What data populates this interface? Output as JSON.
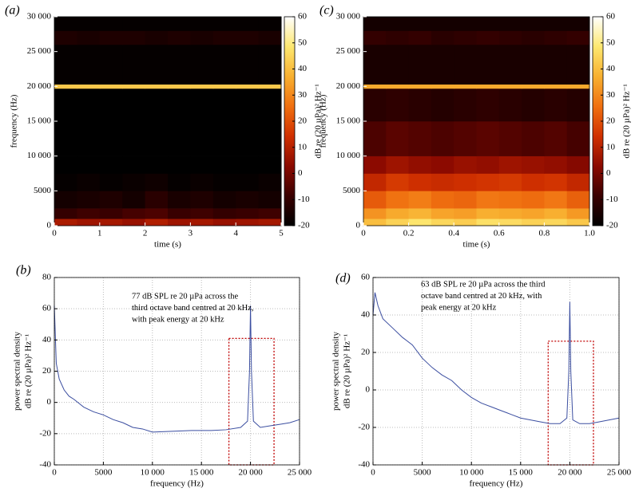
{
  "chart_data": [
    {
      "type": "heatmap",
      "panel_label": "(a)",
      "xlabel": "time (s)",
      "ylabel": "frequency (Hz)",
      "xlim": [
        0,
        5
      ],
      "xticks": [
        0,
        1,
        2,
        3,
        4,
        5
      ],
      "ylim": [
        0,
        30000
      ],
      "yticks": [
        0,
        5000,
        {
          "value": 10000,
          "label": "10 000"
        },
        {
          "value": 15000,
          "label": "15 000"
        },
        {
          "value": 20000,
          "label": "20 000"
        },
        {
          "value": 25000,
          "label": "25 000"
        },
        {
          "value": 30000,
          "label": "30 000"
        }
      ],
      "xbins": [
        0,
        0.5,
        1,
        1.5,
        2,
        2.5,
        3,
        3.5,
        4,
        4.5,
        5
      ],
      "ybins": [
        0,
        1000,
        2500,
        5000,
        7500,
        10000,
        15000,
        19700,
        20300,
        26000,
        28000,
        30000
      ],
      "z": [
        [
          8,
          6,
          7,
          5,
          9,
          6,
          7,
          5,
          6,
          7
        ],
        [
          -10,
          -8,
          -9,
          -7,
          -6,
          -9,
          -8,
          -10,
          -9,
          -8
        ],
        [
          -16,
          -15,
          -14,
          -16,
          -12,
          -15,
          -14,
          -16,
          -15,
          -16
        ],
        [
          -19,
          -18,
          -19,
          -18,
          -17,
          -19,
          -18,
          -19,
          -19,
          -18
        ],
        [
          -20,
          -20,
          -20,
          -20,
          -20,
          -20,
          -20,
          -20,
          -20,
          -20
        ],
        [
          -20,
          -20,
          -20,
          -20,
          -20,
          -20,
          -20,
          -20,
          -20,
          -20
        ],
        [
          -20,
          -20,
          -20,
          -20,
          -20,
          -20,
          -20,
          -20,
          -20,
          -20
        ],
        [
          42,
          42,
          42,
          42,
          42,
          42,
          42,
          42,
          42,
          42
        ],
        [
          -19,
          -19,
          -19,
          -19,
          -19,
          -19,
          -19,
          -19,
          -19,
          -19
        ],
        [
          -14,
          -15,
          -14,
          -14,
          -15,
          -14,
          -15,
          -14,
          -14,
          -15
        ],
        [
          -19,
          -19,
          -19,
          -19,
          -19,
          -19,
          -19,
          -19,
          -19,
          -19
        ]
      ],
      "clim": [
        -20,
        60
      ],
      "cticks": [
        -20,
        -10,
        0,
        10,
        20,
        30,
        40,
        50,
        60
      ],
      "clabel": "dB re (20 µPa)² Hz⁻¹",
      "colormap": [
        "#000000",
        "#3a0000",
        "#8b0a00",
        "#d03000",
        "#f07010",
        "#f8b030",
        "#fde870",
        "#ffffff"
      ]
    },
    {
      "type": "line",
      "panel_label": "(b)",
      "xlabel": "frequency (Hz)",
      "ylabel": [
        "power spectral density",
        "dB re (20 µPa)² Hz⁻¹"
      ],
      "xlim": [
        0,
        25000
      ],
      "xticks": [
        0,
        5000,
        {
          "value": 10000,
          "label": "10 000"
        },
        {
          "value": 15000,
          "label": "15 000"
        },
        {
          "value": 20000,
          "label": "20 000"
        },
        {
          "value": 25000,
          "label": "25 000"
        }
      ],
      "ylim": [
        -40,
        80
      ],
      "yticks": [
        -40,
        -20,
        0,
        20,
        40,
        60,
        80
      ],
      "grid": true,
      "color": "#3b4ea0",
      "x": [
        0,
        200,
        500,
        1000,
        1500,
        2000,
        3000,
        4000,
        5000,
        6000,
        7000,
        8000,
        9000,
        10000,
        12000,
        14000,
        16000,
        17500,
        19000,
        19700,
        19900,
        20000,
        20100,
        20300,
        21000,
        22000,
        23000,
        24000,
        25000
      ],
      "values": [
        62,
        25,
        15,
        8,
        4,
        2,
        -3,
        -6,
        -8,
        -11,
        -13,
        -16,
        -17,
        -19,
        -18.5,
        -18,
        -18,
        -17.5,
        -16,
        -12,
        20,
        62,
        20,
        -12,
        -16,
        -15,
        -14,
        -13,
        -11
      ],
      "annotation": [
        "77 dB SPL re 20 µPa across the",
        "third octave band centred at 20 kHz,",
        "with peak energy at 20 kHz"
      ],
      "highlight": {
        "x": [
          17800,
          22400
        ],
        "y": [
          -40,
          41
        ],
        "color": "#c00000"
      }
    },
    {
      "type": "heatmap",
      "panel_label": "(c)",
      "xlabel": "time (s)",
      "ylabel": "frequency (Hz)",
      "xlim": [
        0,
        1
      ],
      "xticks": [
        0,
        0.2,
        0.4,
        0.6,
        0.8,
        {
          "value": 1,
          "label": "1.0"
        }
      ],
      "ylim": [
        0,
        30000
      ],
      "yticks": [
        0,
        5000,
        {
          "value": 10000,
          "label": "10 000"
        },
        {
          "value": 15000,
          "label": "15 000"
        },
        {
          "value": 20000,
          "label": "20 000"
        },
        {
          "value": 25000,
          "label": "25 000"
        },
        {
          "value": 30000,
          "label": "30 000"
        }
      ],
      "xbins": [
        0,
        0.1,
        0.2,
        0.3,
        0.4,
        0.5,
        0.6,
        0.7,
        0.8,
        0.9,
        1
      ],
      "ybins": [
        0,
        1000,
        2500,
        5000,
        7500,
        10000,
        15000,
        19700,
        20300,
        26000,
        28000,
        30000
      ],
      "z": [
        [
          40,
          44,
          48,
          45,
          43,
          47,
          46,
          44,
          45,
          42
        ],
        [
          32,
          36,
          38,
          35,
          34,
          37,
          36,
          35,
          37,
          33
        ],
        [
          22,
          26,
          28,
          25,
          24,
          27,
          26,
          25,
          27,
          23
        ],
        [
          12,
          16,
          14,
          13,
          14,
          15,
          16,
          14,
          15,
          12
        ],
        [
          3,
          6,
          4,
          3,
          5,
          4,
          6,
          5,
          4,
          2
        ],
        [
          -6,
          -4,
          -5,
          -6,
          -5,
          -4,
          -5,
          -6,
          -5,
          -7
        ],
        [
          -12,
          -11,
          -12,
          -13,
          -12,
          -11,
          -12,
          -13,
          -12,
          -13
        ],
        [
          36,
          36,
          36,
          36,
          36,
          36,
          36,
          36,
          36,
          36
        ],
        [
          -15,
          -15,
          -15,
          -15,
          -15,
          -15,
          -15,
          -15,
          -15,
          -15
        ],
        [
          -10,
          -11,
          -10,
          -12,
          -11,
          -10,
          -11,
          -12,
          -11,
          -10
        ],
        [
          -16,
          -16,
          -16,
          -16,
          -16,
          -16,
          -16,
          -16,
          -16,
          -16
        ]
      ],
      "clim": [
        -20,
        60
      ],
      "cticks": [
        -20,
        -10,
        0,
        10,
        20,
        30,
        40,
        50,
        60
      ],
      "clabel": "dB re (20 µPa)² Hz⁻¹",
      "colormap": [
        "#000000",
        "#3a0000",
        "#8b0a00",
        "#d03000",
        "#f07010",
        "#f8b030",
        "#fde870",
        "#ffffff"
      ]
    },
    {
      "type": "line",
      "panel_label": "(d)",
      "xlabel": "frequency (Hz)",
      "ylabel": [
        "power spectral density",
        "dB re (20 µPa)² Hz⁻¹"
      ],
      "xlim": [
        0,
        25000
      ],
      "xticks": [
        0,
        5000,
        {
          "value": 10000,
          "label": "10 000"
        },
        {
          "value": 15000,
          "label": "15 000"
        },
        {
          "value": 20000,
          "label": "20 000"
        },
        {
          "value": 25000,
          "label": "25 000"
        }
      ],
      "ylim": [
        -40,
        60
      ],
      "yticks": [
        -40,
        -20,
        0,
        20,
        40,
        60
      ],
      "grid": true,
      "color": "#3b4ea0",
      "x": [
        0,
        200,
        500,
        1000,
        2000,
        3000,
        4000,
        5000,
        6000,
        7000,
        8000,
        9000,
        10000,
        11000,
        12000,
        13000,
        14000,
        15000,
        16000,
        17000,
        18000,
        19000,
        19700,
        19900,
        20000,
        20100,
        20300,
        21000,
        22000,
        23000,
        24000,
        25000
      ],
      "values": [
        40,
        52,
        45,
        38,
        33,
        28,
        24,
        17,
        12,
        8,
        5,
        0,
        -4,
        -7,
        -9,
        -11,
        -13,
        -15,
        -16,
        -17,
        -18,
        -18,
        -15,
        10,
        47,
        10,
        -16,
        -18,
        -18,
        -17,
        -16,
        -15
      ],
      "annotation": [
        "63 dB SPL re 20 µPa across the third",
        "octave band centred at 20 kHz, with",
        "peak energy at 20 kHz"
      ],
      "highlight": {
        "x": [
          17800,
          22400
        ],
        "y": [
          -40,
          26
        ],
        "color": "#c00000"
      }
    }
  ]
}
